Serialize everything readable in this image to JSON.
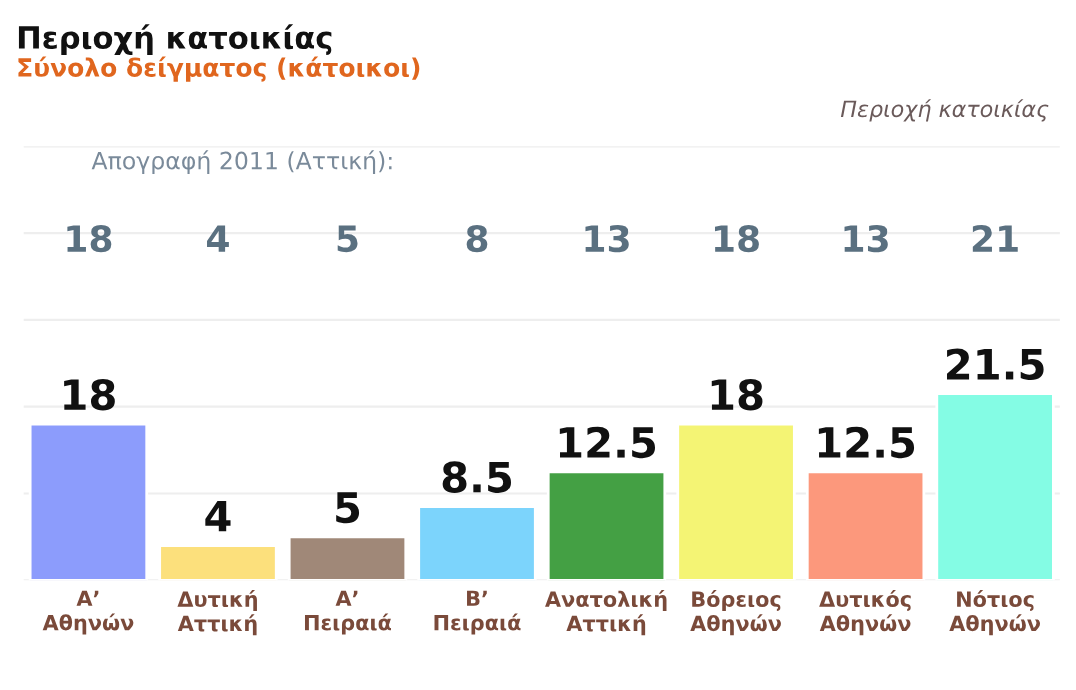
{
  "chart_data": {
    "type": "bar",
    "title": "Περιοχή κατοικίας",
    "subtitle": "Σύνολο δείγματος (κάτοικοι)",
    "categories": [
      "Α’\nΑθηνών",
      "Δυτική\nΑττική",
      "Α’\nΠειραιά",
      "Β’\nΠειραιά",
      "Ανατολική\nΑττική",
      "Βόρειος\nΑθηνών",
      "Δυτικός\nΑθηνών",
      "Νότιος\nΑθηνών"
    ],
    "values": [
      18,
      4,
      5,
      8.5,
      12.5,
      18,
      12.5,
      21.5
    ],
    "colors": [
      "#8c9cfc",
      "#fce07c",
      "#a08878",
      "#7cd4fc",
      "#44a044",
      "#f4f474",
      "#fc987c",
      "#84fce4"
    ],
    "data_labels": true,
    "ylim": [
      0,
      50
    ],
    "yticks": [
      {
        "value": 0,
        "label": null
      },
      {
        "value": 10,
        "label": null
      },
      {
        "value": 20,
        "label": null
      },
      {
        "value": 30,
        "label": null
      },
      {
        "value": 40,
        "label": null
      },
      {
        "value": 50,
        "label": null
      }
    ],
    "grid": "y",
    "tick_labels": "x",
    "legend": false,
    "annotations": [
      "Περιοχή κατοικίας",
      "Απογραφή 2011 (Αττική):",
      "18",
      "4",
      "5",
      "8",
      "13",
      "18",
      "13",
      "21"
    ]
  }
}
